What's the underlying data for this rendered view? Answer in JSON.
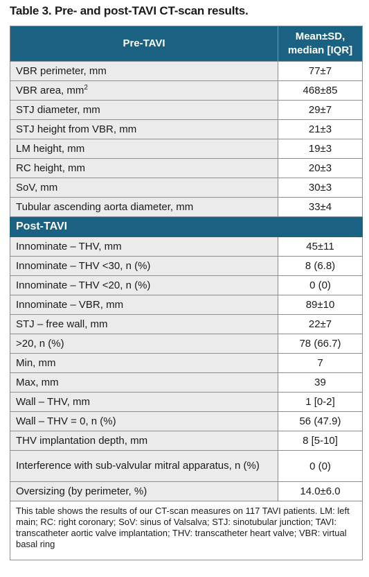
{
  "caption": "Table 3. Pre- and post-TAVI CT-scan results.",
  "header": {
    "col1": "Pre-TAVI",
    "col2_line1": "Mean±SD,",
    "col2_line2": "median [IQR]"
  },
  "pre_rows": [
    {
      "label": "VBR perimeter, mm",
      "value": "77±7"
    },
    {
      "label": "VBR area, mm",
      "sup": "2",
      "value": "468±85"
    },
    {
      "label": "STJ diameter, mm",
      "value": "29±7"
    },
    {
      "label": "STJ height from VBR, mm",
      "value": "21±3"
    },
    {
      "label": "LM height, mm",
      "value": "19±3"
    },
    {
      "label": "RC height, mm",
      "value": "20±3"
    },
    {
      "label": "SoV, mm",
      "value": "30±3"
    },
    {
      "label": "Tubular ascending aorta diameter, mm",
      "value": "33±4"
    }
  ],
  "post_header": "Post-TAVI",
  "post_rows": [
    {
      "label": "Innominate – THV, mm",
      "value": "45±11"
    },
    {
      "label": "Innominate – THV <30, n (%)",
      "value": "8 (6.8)"
    },
    {
      "label": "Innominate – THV <20, n (%)",
      "value": "0 (0)"
    },
    {
      "label": "Innominate – VBR, mm",
      "value": "89±10"
    },
    {
      "label": "STJ – free wall, mm",
      "value": "22±7"
    },
    {
      "label": ">20, n (%)",
      "value": "78 (66.7)"
    },
    {
      "label": "Min, mm",
      "value": "7"
    },
    {
      "label": "Max, mm",
      "value": "39"
    },
    {
      "label": "Wall – THV, mm",
      "value": "1 [0-2]"
    },
    {
      "label": "Wall – THV = 0, n (%)",
      "value": "56 (47.9)"
    },
    {
      "label": "THV implantation depth, mm",
      "value": "8 [5-10]"
    },
    {
      "label": "Interference with sub-valvular mitral apparatus, n (%)",
      "value": "0 (0)"
    },
    {
      "label": "Oversizing (by perimeter, %)",
      "value": "14.0±6.0"
    }
  ],
  "footnote": "This table shows the results of our CT-scan measures on 117 TAVI patients. LM: left main; RC: right coronary; SoV: sinus of Valsalva; STJ: sinotubular junction; TAVI: transcatheter aortic valve implantation; THV: transcatheter heart valve; VBR: virtual basal ring"
}
